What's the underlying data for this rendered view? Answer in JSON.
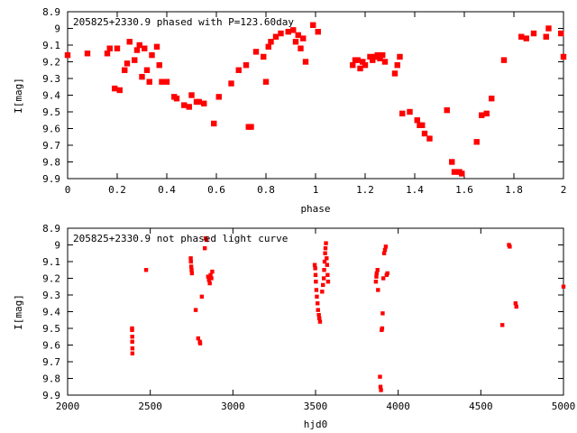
{
  "chart_data": [
    {
      "type": "scatter",
      "title": "205825+2330.9 phased with P=123.60day",
      "xlabel": "phase",
      "ylabel": "I[mag]",
      "xlim": [
        0,
        2
      ],
      "ylim": [
        9.9,
        8.9
      ],
      "y_inverted": true,
      "grid": false,
      "legend": "none",
      "marker_color": "#ff0000",
      "x_ticks": [
        "0",
        "0.2",
        "0.4",
        "0.6",
        "0.8",
        "1",
        "1.2",
        "1.4",
        "1.6",
        "1.8",
        "2"
      ],
      "x_tick_values": [
        0,
        0.2,
        0.4,
        0.6,
        0.8,
        1.0,
        1.2,
        1.4,
        1.6,
        1.8,
        2.0
      ],
      "y_ticks": [
        "8.9",
        "9",
        "9.1",
        "9.2",
        "9.3",
        "9.4",
        "9.5",
        "9.6",
        "9.7",
        "9.8",
        "9.9"
      ],
      "y_tick_values": [
        8.9,
        9.0,
        9.1,
        9.2,
        9.3,
        9.4,
        9.5,
        9.6,
        9.7,
        9.8,
        9.9
      ],
      "points": [
        [
          0.0,
          9.16
        ],
        [
          0.08,
          9.15
        ],
        [
          0.16,
          9.15
        ],
        [
          0.17,
          9.12
        ],
        [
          0.19,
          9.36
        ],
        [
          0.2,
          9.12
        ],
        [
          0.21,
          9.37
        ],
        [
          0.23,
          9.25
        ],
        [
          0.24,
          9.21
        ],
        [
          0.25,
          9.08
        ],
        [
          0.27,
          9.19
        ],
        [
          0.28,
          9.13
        ],
        [
          0.29,
          9.1
        ],
        [
          0.3,
          9.29
        ],
        [
          0.31,
          9.12
        ],
        [
          0.32,
          9.25
        ],
        [
          0.33,
          9.32
        ],
        [
          0.34,
          9.16
        ],
        [
          0.36,
          9.11
        ],
        [
          0.37,
          9.22
        ],
        [
          0.38,
          9.32
        ],
        [
          0.4,
          9.32
        ],
        [
          0.43,
          9.41
        ],
        [
          0.44,
          9.42
        ],
        [
          0.47,
          9.46
        ],
        [
          0.49,
          9.47
        ],
        [
          0.5,
          9.4
        ],
        [
          0.52,
          9.44
        ],
        [
          0.53,
          9.44
        ],
        [
          0.55,
          9.45
        ],
        [
          0.59,
          9.57
        ],
        [
          0.61,
          9.41
        ],
        [
          0.66,
          9.33
        ],
        [
          0.69,
          9.25
        ],
        [
          0.72,
          9.22
        ],
        [
          0.73,
          9.59
        ],
        [
          0.74,
          9.59
        ],
        [
          0.76,
          9.14
        ],
        [
          0.79,
          9.17
        ],
        [
          0.8,
          9.32
        ],
        [
          0.81,
          9.11
        ],
        [
          0.82,
          9.08
        ],
        [
          0.84,
          9.05
        ],
        [
          0.86,
          9.03
        ],
        [
          0.89,
          9.02
        ],
        [
          0.91,
          9.01
        ],
        [
          0.92,
          9.08
        ],
        [
          0.93,
          9.04
        ],
        [
          0.94,
          9.12
        ],
        [
          0.95,
          9.06
        ],
        [
          0.96,
          9.2
        ],
        [
          0.99,
          8.98
        ],
        [
          1.01,
          9.02
        ],
        [
          1.15,
          9.22
        ],
        [
          1.16,
          9.19
        ],
        [
          1.17,
          9.19
        ],
        [
          1.18,
          9.24
        ],
        [
          1.19,
          9.2
        ],
        [
          1.2,
          9.22
        ],
        [
          1.22,
          9.17
        ],
        [
          1.23,
          9.19
        ],
        [
          1.24,
          9.17
        ],
        [
          1.25,
          9.16
        ],
        [
          1.26,
          9.18
        ],
        [
          1.27,
          9.16
        ],
        [
          1.28,
          9.2
        ],
        [
          1.32,
          9.27
        ],
        [
          1.33,
          9.22
        ],
        [
          1.34,
          9.17
        ],
        [
          1.35,
          9.51
        ],
        [
          1.38,
          9.5
        ],
        [
          1.41,
          9.55
        ],
        [
          1.42,
          9.58
        ],
        [
          1.43,
          9.58
        ],
        [
          1.44,
          9.63
        ],
        [
          1.46,
          9.66
        ],
        [
          1.53,
          9.49
        ],
        [
          1.55,
          9.8
        ],
        [
          1.56,
          9.86
        ],
        [
          1.58,
          9.86
        ],
        [
          1.59,
          9.87
        ],
        [
          1.65,
          9.68
        ],
        [
          1.67,
          9.52
        ],
        [
          1.69,
          9.51
        ],
        [
          1.71,
          9.42
        ],
        [
          1.76,
          9.19
        ],
        [
          1.83,
          9.05
        ],
        [
          1.85,
          9.06
        ],
        [
          1.88,
          9.03
        ],
        [
          1.93,
          9.05
        ],
        [
          1.94,
          9.0
        ],
        [
          1.99,
          9.03
        ],
        [
          2.0,
          9.17
        ]
      ]
    },
    {
      "type": "scatter",
      "title": "205825+2330.9 not phased light curve",
      "xlabel": "hjd0",
      "ylabel": "I[mag]",
      "xlim": [
        2000,
        5000
      ],
      "ylim": [
        9.9,
        8.9
      ],
      "y_inverted": true,
      "grid": false,
      "legend": "none",
      "marker_color": "#ff0000",
      "x_ticks": [
        "2000",
        "2500",
        "3000",
        "3500",
        "4000",
        "4500",
        "5000"
      ],
      "x_tick_values": [
        2000,
        2500,
        3000,
        3500,
        4000,
        4500,
        5000
      ],
      "y_ticks": [
        "8.9",
        "9",
        "9.1",
        "9.2",
        "9.3",
        "9.4",
        "9.5",
        "9.6",
        "9.7",
        "9.8",
        "9.9"
      ],
      "y_tick_values": [
        8.9,
        9.0,
        9.1,
        9.2,
        9.3,
        9.4,
        9.5,
        9.6,
        9.7,
        9.8,
        9.9
      ],
      "points": [
        [
          2390,
          9.5
        ],
        [
          2390,
          9.51
        ],
        [
          2391,
          9.55
        ],
        [
          2391,
          9.58
        ],
        [
          2392,
          9.62
        ],
        [
          2392,
          9.65
        ],
        [
          2475,
          9.15
        ],
        [
          2745,
          9.08
        ],
        [
          2746,
          9.1
        ],
        [
          2748,
          9.13
        ],
        [
          2750,
          9.15
        ],
        [
          2752,
          9.17
        ],
        [
          2775,
          9.39
        ],
        [
          2790,
          9.56
        ],
        [
          2800,
          9.58
        ],
        [
          2802,
          9.59
        ],
        [
          2812,
          9.31
        ],
        [
          2830,
          9.02
        ],
        [
          2835,
          8.96
        ],
        [
          2840,
          8.97
        ],
        [
          2850,
          9.19
        ],
        [
          2855,
          9.21
        ],
        [
          2860,
          9.23
        ],
        [
          2865,
          9.18
        ],
        [
          2870,
          9.2
        ],
        [
          2875,
          9.16
        ],
        [
          3495,
          9.12
        ],
        [
          3498,
          9.14
        ],
        [
          3500,
          9.18
        ],
        [
          3502,
          9.22
        ],
        [
          3505,
          9.27
        ],
        [
          3508,
          9.31
        ],
        [
          3512,
          9.35
        ],
        [
          3515,
          9.39
        ],
        [
          3520,
          9.42
        ],
        [
          3523,
          9.44
        ],
        [
          3527,
          9.46
        ],
        [
          3540,
          9.28
        ],
        [
          3545,
          9.24
        ],
        [
          3550,
          9.2
        ],
        [
          3552,
          9.15
        ],
        [
          3555,
          9.1
        ],
        [
          3558,
          9.05
        ],
        [
          3560,
          9.02
        ],
        [
          3563,
          8.99
        ],
        [
          3567,
          9.08
        ],
        [
          3570,
          9.12
        ],
        [
          3573,
          9.18
        ],
        [
          3576,
          9.22
        ],
        [
          3865,
          9.22
        ],
        [
          3868,
          9.19
        ],
        [
          3870,
          9.17
        ],
        [
          3875,
          9.15
        ],
        [
          3878,
          9.27
        ],
        [
          3890,
          9.79
        ],
        [
          3893,
          9.85
        ],
        [
          3896,
          9.87
        ],
        [
          3900,
          9.51
        ],
        [
          3903,
          9.5
        ],
        [
          3906,
          9.41
        ],
        [
          3910,
          9.2
        ],
        [
          3915,
          9.05
        ],
        [
          3920,
          9.03
        ],
        [
          3925,
          9.01
        ],
        [
          3930,
          9.18
        ],
        [
          3935,
          9.17
        ],
        [
          4630,
          9.48
        ],
        [
          4670,
          9.0
        ],
        [
          4675,
          9.01
        ],
        [
          4710,
          9.35
        ],
        [
          4715,
          9.37
        ],
        [
          5000,
          9.25
        ]
      ]
    }
  ]
}
